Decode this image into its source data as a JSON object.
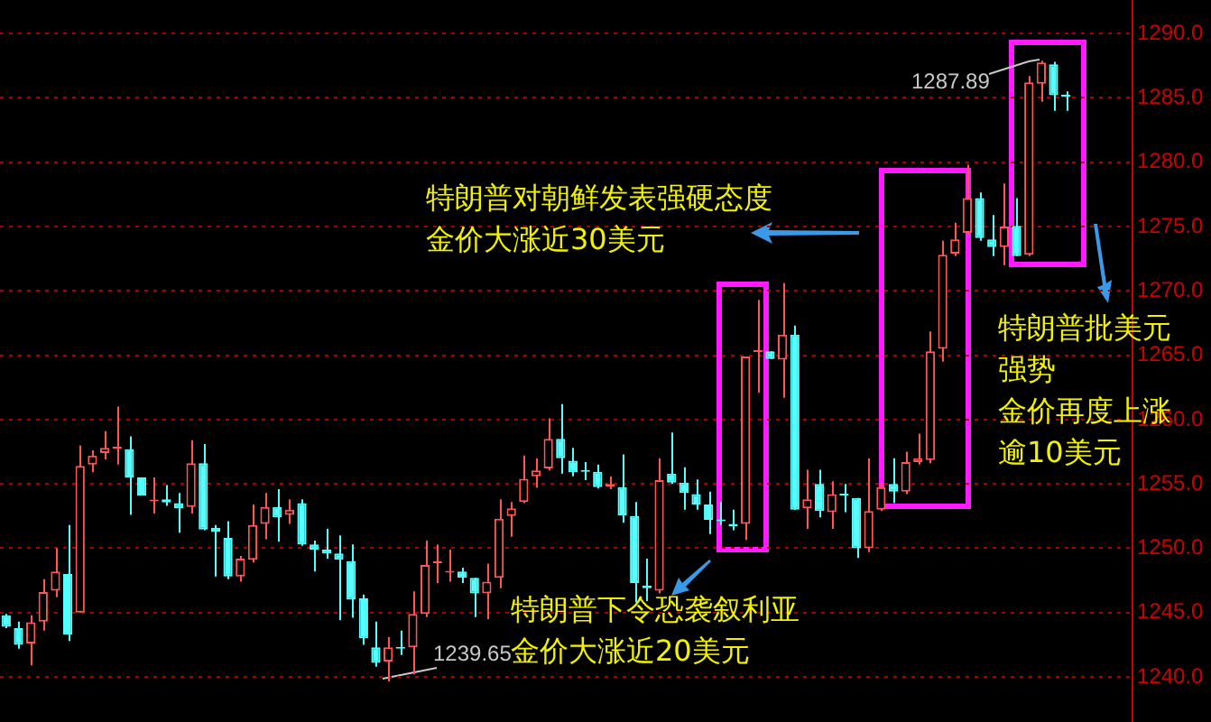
{
  "chart_data": {
    "type": "candlestick",
    "categories": [
      null,
      null,
      null,
      null,
      null,
      null,
      null,
      null,
      null,
      null,
      null,
      null,
      null,
      null,
      null,
      null,
      null,
      null,
      null,
      null,
      null,
      null,
      null,
      null,
      null,
      null,
      null,
      null,
      null,
      null,
      null,
      null,
      null,
      null,
      null,
      null,
      null,
      null,
      null,
      null,
      null,
      null,
      null,
      null,
      null,
      null,
      null,
      null,
      null,
      null,
      null,
      null,
      null,
      null,
      null,
      null,
      null,
      null,
      null,
      null,
      null,
      null,
      null,
      null,
      null,
      null,
      null,
      null,
      null,
      null,
      null,
      null,
      null,
      null,
      null,
      null,
      null,
      null,
      null,
      null,
      null,
      null,
      null,
      null,
      null,
      null,
      null
    ],
    "ohlc": [
      [
        1244.8,
        1244.9,
        1243.8,
        1243.9
      ],
      [
        1243.8,
        1244.3,
        1242.2,
        1242.5
      ],
      [
        1242.6,
        1244.8,
        1240.9,
        1244.25
      ],
      [
        1244.3,
        1247.6,
        1243.6,
        1246.6
      ],
      [
        1246.7,
        1250,
        1246.2,
        1248.2
      ],
      [
        1248,
        1251.8,
        1242.8,
        1243.3
      ],
      [
        1245,
        1258,
        1245,
        1256.4
      ],
      [
        1256.5,
        1257.6,
        1255.9,
        1257.2
      ],
      [
        1257.4,
        1259.1,
        1256.9,
        1257.8
      ],
      [
        1257.75,
        1261,
        1256.5,
        1257.8
      ],
      [
        1257.7,
        1258.7,
        1252.6,
        1255.5
      ],
      [
        1255.5,
        1255.5,
        1254.1,
        1254.1
      ],
      [
        1253.65,
        1255.5,
        1252.7,
        1253.7
      ],
      [
        1253.8,
        1254.9,
        1253.3,
        1253.55
      ],
      [
        1253.5,
        1254.3,
        1251.2,
        1253.1
      ],
      [
        1253.2,
        1258.4,
        1252.7,
        1256.6
      ],
      [
        1256.6,
        1258.1,
        1251.4,
        1251.45
      ],
      [
        1251.6,
        1251.8,
        1247.8,
        1251.3
      ],
      [
        1250.8,
        1252.1,
        1247.6,
        1247.8
      ],
      [
        1247.8,
        1249.4,
        1247.4,
        1249.2
      ],
      [
        1249.1,
        1253.4,
        1248.9,
        1251.8
      ],
      [
        1251.9,
        1254.3,
        1250.7,
        1253.2
      ],
      [
        1253.2,
        1254.6,
        1250.5,
        1252.4
      ],
      [
        1252.6,
        1253.8,
        1251.9,
        1253
      ],
      [
        1253.5,
        1253.8,
        1250.2,
        1250.3
      ],
      [
        1250.3,
        1250.6,
        1248.2,
        1249.9
      ],
      [
        1249.9,
        1251.5,
        1249.2,
        1249.6
      ],
      [
        1249.6,
        1251,
        1244.4,
        1249.1
      ],
      [
        1249,
        1250.3,
        1244.6,
        1246
      ],
      [
        1246.1,
        1246.4,
        1242.5,
        1243
      ],
      [
        1242.3,
        1244.3,
        1240.8,
        1241.1
      ],
      [
        1241.2,
        1243.1,
        1239.65,
        1242.3
      ],
      [
        1242.3,
        1243.6,
        1241.7,
        1242.2
      ],
      [
        1242.3,
        1246.65,
        1240.2,
        1244.9
      ],
      [
        1244.9,
        1250.6,
        1244.65,
        1248.7
      ],
      [
        1248.85,
        1250.3,
        1247.3,
        1248.9
      ],
      [
        1248.1,
        1249.9,
        1247.4,
        1248.2
      ],
      [
        1248.2,
        1248.5,
        1247.3,
        1247.7
      ],
      [
        1247.7,
        1247.7,
        1244.65,
        1246.5
      ],
      [
        1246.5,
        1248.8,
        1244.5,
        1247.4
      ],
      [
        1247.7,
        1253.8,
        1246.9,
        1252.3
      ],
      [
        1252.5,
        1253.6,
        1250.9,
        1253.1
      ],
      [
        1253.6,
        1257.2,
        1253.5,
        1255.4
      ],
      [
        1255.6,
        1257,
        1254.7,
        1256.05
      ],
      [
        1256.2,
        1260.1,
        1256.05,
        1258.5
      ],
      [
        1258.5,
        1261.2,
        1255.8,
        1257
      ],
      [
        1256.8,
        1257.8,
        1255.6,
        1255.9
      ],
      [
        1256.05,
        1256.7,
        1255.3,
        1255.95
      ],
      [
        1255.95,
        1256.5,
        1254.65,
        1254.75
      ],
      [
        1254.8,
        1255.6,
        1254.6,
        1255
      ],
      [
        1254.75,
        1257.3,
        1252,
        1252.55
      ],
      [
        1252.5,
        1253.6,
        1245.8,
        1247.3
      ],
      [
        1247.1,
        1249.2,
        1245.9,
        1246.9
      ],
      [
        1246.7,
        1257,
        1246.5,
        1255.3
      ],
      [
        1255.8,
        1259,
        1255,
        1255.1
      ],
      [
        1255.1,
        1256.3,
        1253,
        1254.3
      ],
      [
        1254.2,
        1255.35,
        1253,
        1253.4
      ],
      [
        1253.4,
        1254.4,
        1251.1,
        1252.2
      ],
      [
        1252.2,
        1253.6,
        1251.8,
        1252.1
      ],
      [
        1251.9,
        1253,
        1251.4,
        1251.7
      ],
      [
        1251.9,
        1264.9,
        1250.65,
        1264.9
      ],
      [
        1265.25,
        1269.3,
        1262.1,
        1265.35
      ],
      [
        1265.3,
        1265.3,
        1264.7,
        1264.7
      ],
      [
        1264.65,
        1270.6,
        1261.7,
        1266.6
      ],
      [
        1266.6,
        1267.3,
        1253,
        1253
      ],
      [
        1253.1,
        1256.1,
        1251.5,
        1253.8
      ],
      [
        1255,
        1256.1,
        1252.4,
        1252.9
      ],
      [
        1252.8,
        1255.2,
        1251.5,
        1254.2
      ],
      [
        1254.2,
        1255,
        1252.8,
        1254.1
      ],
      [
        1253.9,
        1253.9,
        1249.25,
        1250
      ],
      [
        1250,
        1257,
        1249.7,
        1252.9
      ],
      [
        1253,
        1255.1,
        1252.9,
        1254.75
      ],
      [
        1255,
        1257,
        1253.5,
        1254.4
      ],
      [
        1254.4,
        1257.5,
        1254.2,
        1256.7
      ],
      [
        1256.7,
        1258.9,
        1256.5,
        1257
      ],
      [
        1256.85,
        1266.85,
        1256.6,
        1265.3
      ],
      [
        1265.5,
        1273.9,
        1264.5,
        1272.8
      ],
      [
        1272.9,
        1275.3,
        1272.7,
        1274
      ],
      [
        1274.5,
        1279.8,
        1274.4,
        1277.2
      ],
      [
        1277.2,
        1277.65,
        1273.9,
        1274.1
      ],
      [
        1274,
        1275.9,
        1272.7,
        1273.4
      ],
      [
        1273.4,
        1278.35,
        1272,
        1275
      ],
      [
        1275.05,
        1277.2,
        1272.7,
        1272.7
      ],
      [
        1272.8,
        1286.7,
        1272.7,
        1286.2
      ],
      [
        1286.1,
        1287.89,
        1284.7,
        1287.75
      ],
      [
        1287.6,
        1287.8,
        1284,
        1285.2
      ],
      [
        1285.2,
        1285.5,
        1284,
        1285.1
      ]
    ],
    "colors": [
      "#55ffff",
      "#55ffff",
      "#ff5555",
      "#ff5555",
      "#ff5555",
      "#55ffff",
      "#ff5555",
      "#ff5555",
      "#ff5555",
      "#ff5555",
      "#55ffff",
      "#55ffff",
      "#ff5555",
      "#55ffff",
      "#55ffff",
      "#ff5555",
      "#55ffff",
      "#55ffff",
      "#55ffff",
      "#ff5555",
      "#ff5555",
      "#ff5555",
      "#55ffff",
      "#ff5555",
      "#55ffff",
      "#55ffff",
      "#55ffff",
      "#55ffff",
      "#55ffff",
      "#55ffff",
      "#55ffff",
      "#ff5555",
      "#55ffff",
      "#ff5555",
      "#ff5555",
      "#ff5555",
      "#ff5555",
      "#55ffff",
      "#55ffff",
      "#ff5555",
      "#ff5555",
      "#ff5555",
      "#ff5555",
      "#ff5555",
      "#ff5555",
      "#55ffff",
      "#55ffff",
      "#55ffff",
      "#55ffff",
      "#ff5555",
      "#55ffff",
      "#55ffff",
      "#55ffff",
      "#ff5555",
      "#55ffff",
      "#55ffff",
      "#55ffff",
      "#55ffff",
      "#55ffff",
      "#55ffff",
      "#ff5555",
      "#ff5555",
      "#55ffff",
      "#ff5555",
      "#55ffff",
      "#ff5555",
      "#55ffff",
      "#ff5555",
      "#55ffff",
      "#55ffff",
      "#ff5555",
      "#ff5555",
      "#55ffff",
      "#ff5555",
      "#ff5555",
      "#ff5555",
      "#ff5555",
      "#ff5555",
      "#ff5555",
      "#55ffff",
      "#55ffff",
      "#ff5555",
      "#55ffff",
      "#ff5555",
      "#ff5555",
      "#55ffff",
      "#55ffff"
    ],
    "ylim": [
      1236.5,
      1292.6
    ],
    "yticks": [
      {
        "value": 1240,
        "label": "1240.0"
      },
      {
        "value": 1245,
        "label": "1245.0"
      },
      {
        "value": 1250,
        "label": "1250.0"
      },
      {
        "value": 1255,
        "label": "1255.0"
      },
      {
        "value": 1260,
        "label": "1260.0"
      },
      {
        "value": 1265,
        "label": "1265.0"
      },
      {
        "value": 1270,
        "label": "1270.0"
      },
      {
        "value": 1275,
        "label": "1275.0"
      },
      {
        "value": 1280,
        "label": "1280.0"
      },
      {
        "value": 1285,
        "label": "1285.0"
      },
      {
        "value": 1290,
        "label": "1290.0"
      }
    ],
    "grid": "y",
    "legend": false,
    "annotations": [
      "特朗普对朝鲜发表强硬态度金价大涨近30美元",
      "特朗普下令恐袭叙利亚金价大涨近20美元",
      "特朗普批美元强势",
      "金价再度上涨逾10美元",
      "1287.89",
      "1239.65"
    ]
  }
}
